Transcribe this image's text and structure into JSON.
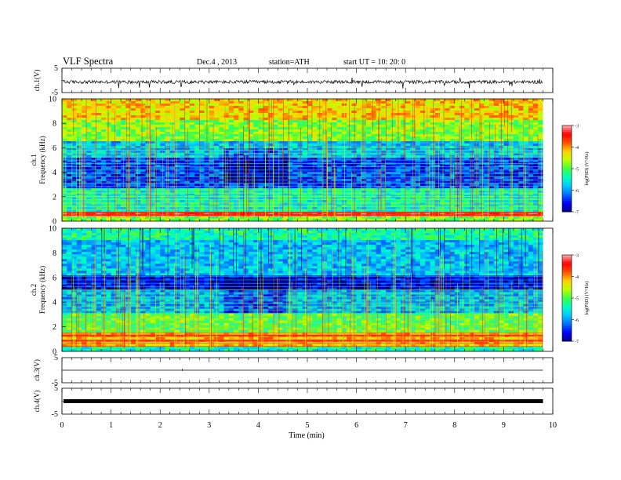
{
  "header": {
    "title": "VLF  Spectra",
    "date": "Dec.4  , 2013",
    "station": "station=ATH",
    "start_ut": "start  UT  =    10: 20: 0"
  },
  "chart_data": [
    {
      "id": "ch1-waveform",
      "type": "line",
      "ylabel": "ch.1(V)",
      "ylim": [
        -5,
        5
      ],
      "yticks": [
        "5",
        "-5"
      ],
      "x_range": [
        0,
        9.8
      ],
      "description_values": {
        "baseline": 0,
        "typical_min": -1.5,
        "typical_max": 1.5,
        "spike_min": -4,
        "spike_max": 2
      }
    },
    {
      "id": "ch1-spectrogram",
      "type": "heatmap",
      "ylabel": "ch.1\nFrequency  (kHz)",
      "ylabel_lines": [
        "ch.1",
        "Frequency  (kHz)"
      ],
      "ylim": [
        0,
        10
      ],
      "yticks": [
        "0",
        "2",
        "4",
        "6",
        "8",
        "10"
      ],
      "colorbar": {
        "label": "log(PSD) (V²/Hz)",
        "range": [
          -7,
          -3
        ],
        "ticks": [
          "-3",
          "-4",
          "-5",
          "-6",
          "-7"
        ]
      }
    },
    {
      "id": "ch2-spectrogram",
      "type": "heatmap",
      "ylabel": "ch.2\nFrequency  (kHz)",
      "ylabel_lines": [
        "ch.2",
        "Frequency  (kHz)"
      ],
      "ylim": [
        0,
        10
      ],
      "yticks": [
        "0",
        "2",
        "4",
        "6",
        "8",
        "10"
      ],
      "colorbar": {
        "label": "log(PSD) (V²/Hz)",
        "range": [
          -7,
          -3
        ],
        "ticks": [
          "-3",
          "-4",
          "-5",
          "-6",
          "-7"
        ]
      }
    },
    {
      "id": "ch3-waveform",
      "type": "line",
      "ylabel": "ch.3(V)",
      "ylim": [
        -5,
        5
      ],
      "yticks": [
        "5",
        "-5"
      ],
      "description_values": {
        "baseline": 0
      }
    },
    {
      "id": "ch4-waveform",
      "type": "line",
      "ylabel": "ch.4(V)",
      "ylim": [
        -5,
        5
      ],
      "yticks": [
        "5",
        "-5"
      ],
      "description_values": {
        "baseline": 0
      }
    }
  ],
  "xaxis": {
    "label": "Time  (min)",
    "xlim": [
      0,
      10
    ],
    "ticks": [
      "0",
      "1",
      "2",
      "3",
      "4",
      "5",
      "6",
      "7",
      "8",
      "9",
      "10"
    ]
  },
  "colors": {
    "colormap": [
      "#000080",
      "#0000ff",
      "#0070ff",
      "#00c8ff",
      "#00ffc0",
      "#40ff40",
      "#c0ff00",
      "#ffd000",
      "#ff5000",
      "#ff0000",
      "#ffb0b0"
    ],
    "line": "#000000"
  }
}
